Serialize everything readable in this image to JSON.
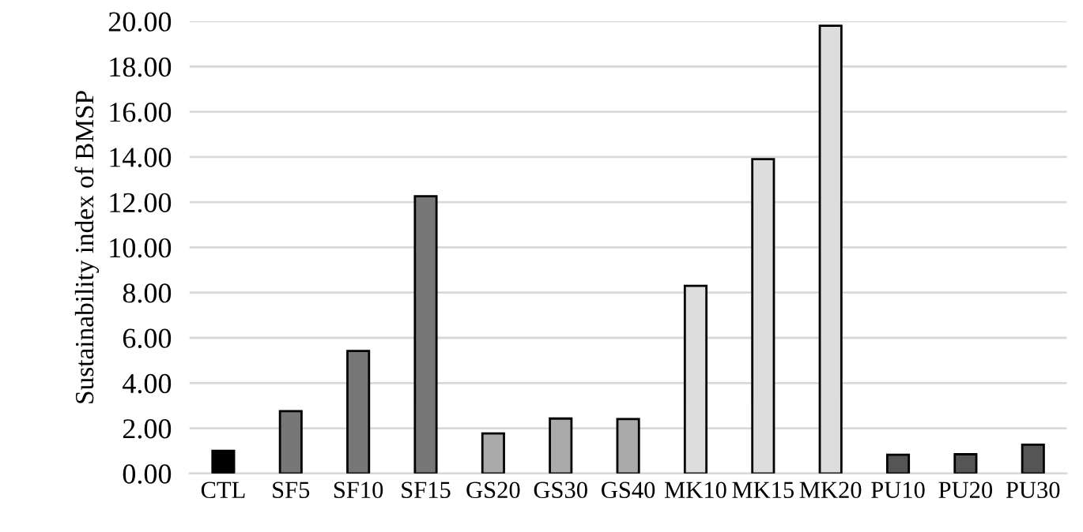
{
  "chart_data": {
    "type": "bar",
    "ylabel": "Sustainability index of BMSP",
    "categories": [
      "CTL",
      "SF5",
      "SF10",
      "SF15",
      "GS20",
      "GS30",
      "GS40",
      "MK10",
      "MK15",
      "MK20",
      "PU10",
      "PU20",
      "PU30"
    ],
    "values": [
      1.0,
      2.76,
      5.42,
      12.26,
      1.77,
      2.43,
      2.41,
      8.3,
      13.9,
      19.8,
      0.83,
      0.85,
      1.27
    ],
    "colors": [
      "#000000",
      "#777777",
      "#777777",
      "#777777",
      "#aaaaaa",
      "#aaaaaa",
      "#aaaaaa",
      "#dddddd",
      "#dddddd",
      "#dddddd",
      "#555555",
      "#555555",
      "#555555"
    ],
    "ylim": [
      0,
      20
    ],
    "yticks": [
      {
        "value": 0,
        "label": "0.00"
      },
      {
        "value": 2,
        "label": "2.00"
      },
      {
        "value": 4,
        "label": "4.00"
      },
      {
        "value": 6,
        "label": "6.00"
      },
      {
        "value": 8,
        "label": "8.00"
      },
      {
        "value": 10,
        "label": "10.00"
      },
      {
        "value": 12,
        "label": "12.00"
      },
      {
        "value": 14,
        "label": "14.00"
      },
      {
        "value": 16,
        "label": "16.00"
      },
      {
        "value": 18,
        "label": "18.00"
      },
      {
        "value": 20,
        "label": "20.00"
      }
    ],
    "grid": "y",
    "legend": false
  }
}
